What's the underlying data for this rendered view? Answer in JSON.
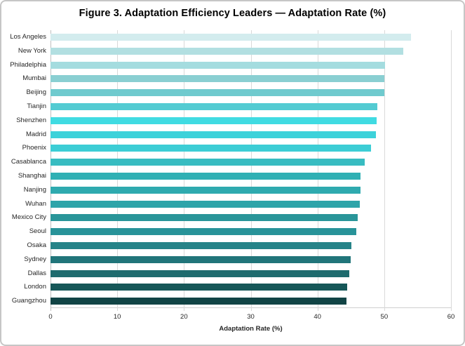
{
  "chart_data": {
    "type": "bar",
    "orientation": "horizontal",
    "title": "Figure 3. Adaptation Efficiency Leaders — Adaptation Rate (%)",
    "xlabel": "Adaptation Rate (%)",
    "ylabel": "",
    "xlim": [
      0,
      60
    ],
    "xticks": [
      0,
      10,
      20,
      30,
      40,
      50,
      60
    ],
    "grid": true,
    "legend": false,
    "categories": [
      "Los Angeles",
      "New York",
      "Philadelphia",
      "Mumbai",
      "Beijing",
      "Tianjin",
      "Shenzhen",
      "Madrid",
      "Phoenix",
      "Casablanca",
      "Shanghai",
      "Nanjing",
      "Wuhan",
      "Mexico City",
      "Seoul",
      "Osaka",
      "Sydney",
      "Dallas",
      "London",
      "Guangzhou"
    ],
    "values": [
      54.0,
      52.9,
      50.1,
      50.0,
      50.0,
      49.0,
      48.9,
      48.8,
      48.0,
      47.1,
      46.4,
      46.4,
      46.3,
      46.0,
      45.8,
      45.1,
      45.0,
      44.8,
      44.5,
      44.3
    ],
    "bar_colors": [
      "#d3ecee",
      "#b2dfe1",
      "#a4dcdf",
      "#8acfd2",
      "#6fcace",
      "#53cbd2",
      "#40dbe2",
      "#3dd2da",
      "#3ccdd5",
      "#38bcc1",
      "#30b0b4",
      "#2faaaf",
      "#2da4a9",
      "#299599",
      "#289399",
      "#268388",
      "#21757a",
      "#1e6b6e",
      "#165758",
      "#114445"
    ],
    "colors": {
      "background": "#ffffff",
      "gridline": "#d9d9d9",
      "axis_line": "#bfbfbf",
      "text": "#262626",
      "title_text": "#000000"
    }
  }
}
